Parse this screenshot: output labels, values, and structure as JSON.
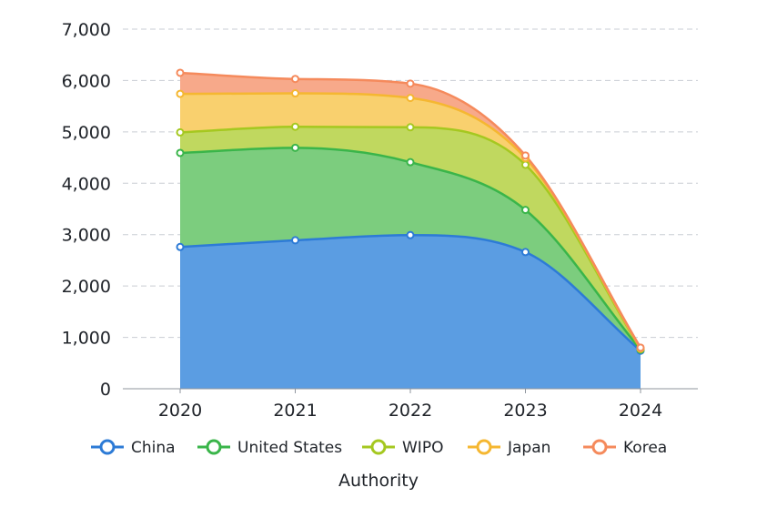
{
  "chart_data": {
    "type": "area",
    "stacked": true,
    "smooth": true,
    "title": "",
    "xlabel": "Authority",
    "ylabel": "",
    "categories": [
      "2020",
      "2021",
      "2022",
      "2023",
      "2024"
    ],
    "ylim": [
      0,
      7000
    ],
    "yticks": [
      0,
      1000,
      2000,
      3000,
      4000,
      5000,
      6000,
      7000
    ],
    "ytick_labels": [
      "0",
      "1,000",
      "2,000",
      "3,000",
      "4,000",
      "5,000",
      "6,000",
      "7,000"
    ],
    "grid": true,
    "legend_position": "bottom",
    "series": [
      {
        "name": "China",
        "values": [
          2760,
          2890,
          2990,
          2660,
          740
        ],
        "color": "#2d7bd6",
        "fill": "#5b9de2"
      },
      {
        "name": "United States",
        "values": [
          1830,
          1800,
          1420,
          820,
          20
        ],
        "color": "#3ab54a",
        "fill": "#7ccd7e"
      },
      {
        "name": "WIPO",
        "values": [
          400,
          410,
          680,
          880,
          15
        ],
        "color": "#a5c820",
        "fill": "#c0d85f"
      },
      {
        "name": "Japan",
        "values": [
          750,
          650,
          570,
          130,
          10
        ],
        "color": "#f5b731",
        "fill": "#f9d06e"
      },
      {
        "name": "Korea",
        "values": [
          410,
          280,
          280,
          50,
          15
        ],
        "color": "#f58a5c",
        "fill": "#f7a98a"
      }
    ]
  }
}
